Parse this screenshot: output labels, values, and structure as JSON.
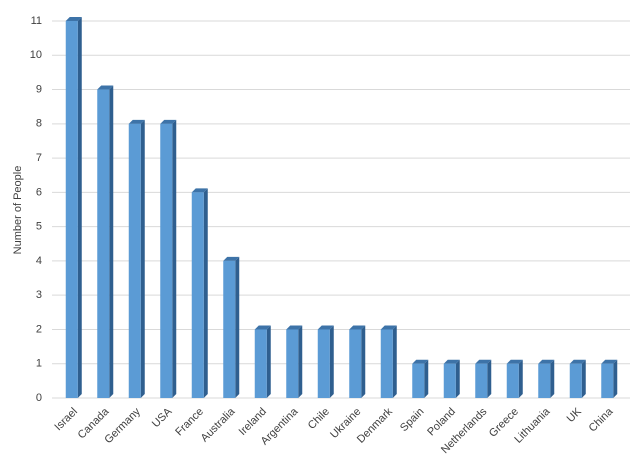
{
  "chart_data": {
    "type": "bar3d",
    "y_label": "Number of People",
    "categories": [
      "Israel",
      "Canada",
      "Germany",
      "USA",
      "France",
      "Australia",
      "Ireland",
      "Argentina",
      "Chile",
      "Ukraine",
      "Denmark",
      "Spain",
      "Poland",
      "Netherlands",
      "Greece",
      "Lithuania",
      "UK",
      "China"
    ],
    "values": [
      11,
      9,
      8,
      8,
      6,
      4,
      2,
      2,
      2,
      2,
      2,
      1,
      1,
      1,
      1,
      1,
      1,
      1
    ],
    "color": "#5b9bd5",
    "ylim": [
      0,
      11
    ],
    "yticks": [
      0,
      1,
      2,
      3,
      4,
      5,
      6,
      7,
      8,
      9,
      10,
      11
    ],
    "grid": true
  }
}
